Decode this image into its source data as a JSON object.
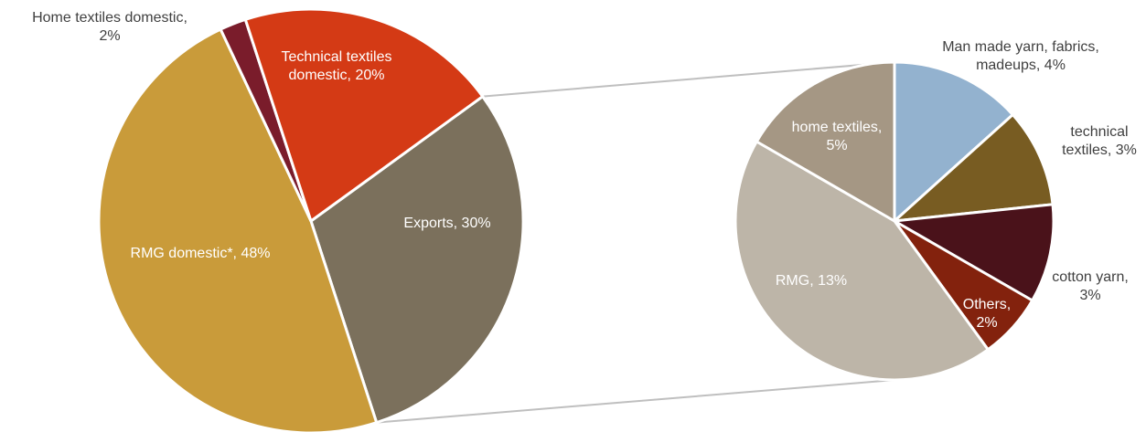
{
  "chart_data": {
    "type": "pie",
    "charts": [
      {
        "name": "main",
        "start_angle_deg": 54,
        "slices": [
          {
            "id": "exports",
            "label_lines": [
              "Exports, 30%"
            ],
            "value": 30,
            "color": "#7b705c",
            "label_color": "#ffffff"
          },
          {
            "id": "rmg-domestic",
            "label_lines": [
              "RMG domestic*, 48%"
            ],
            "value": 48,
            "color": "#c99b3a",
            "label_color": "#ffffff"
          },
          {
            "id": "home-textiles-domestic",
            "label_lines": [
              "Home textiles domestic,",
              "2%"
            ],
            "value": 2,
            "color": "#7a1c2b",
            "label_color": "#404040"
          },
          {
            "id": "technical-textiles-domestic",
            "label_lines": [
              "Technical textiles",
              "domestic, 20%"
            ],
            "value": 20,
            "color": "#d43a15",
            "label_color": "#ffffff"
          }
        ]
      },
      {
        "name": "exports-breakdown",
        "start_angle_deg": 0,
        "slices": [
          {
            "id": "man-made-yarn",
            "label_lines": [
              "Man made yarn, fabrics,",
              "madeups, 4%"
            ],
            "value": 4,
            "color": "#93b2cf",
            "label_color": "#404040"
          },
          {
            "id": "technical-textiles",
            "label_lines": [
              "technical",
              "textiles, 3%"
            ],
            "value": 3,
            "color": "#785c22",
            "label_color": "#404040"
          },
          {
            "id": "cotton-yarn",
            "label_lines": [
              "cotton yarn,",
              "3%"
            ],
            "value": 3,
            "color": "#4a121a",
            "label_color": "#404040"
          },
          {
            "id": "others",
            "label_lines": [
              "Others,",
              "2%"
            ],
            "value": 2,
            "color": "#83220d",
            "label_color": "#ffffff"
          },
          {
            "id": "rmg",
            "label_lines": [
              "RMG, 13%"
            ],
            "value": 13,
            "color": "#bdb5a8",
            "label_color": "#ffffff"
          },
          {
            "id": "home-textiles",
            "label_lines": [
              "home textiles,",
              "5%"
            ],
            "value": 5,
            "color": "#a59784",
            "label_color": "#ffffff"
          }
        ]
      }
    ],
    "connector_color": "#bfbfbf"
  }
}
